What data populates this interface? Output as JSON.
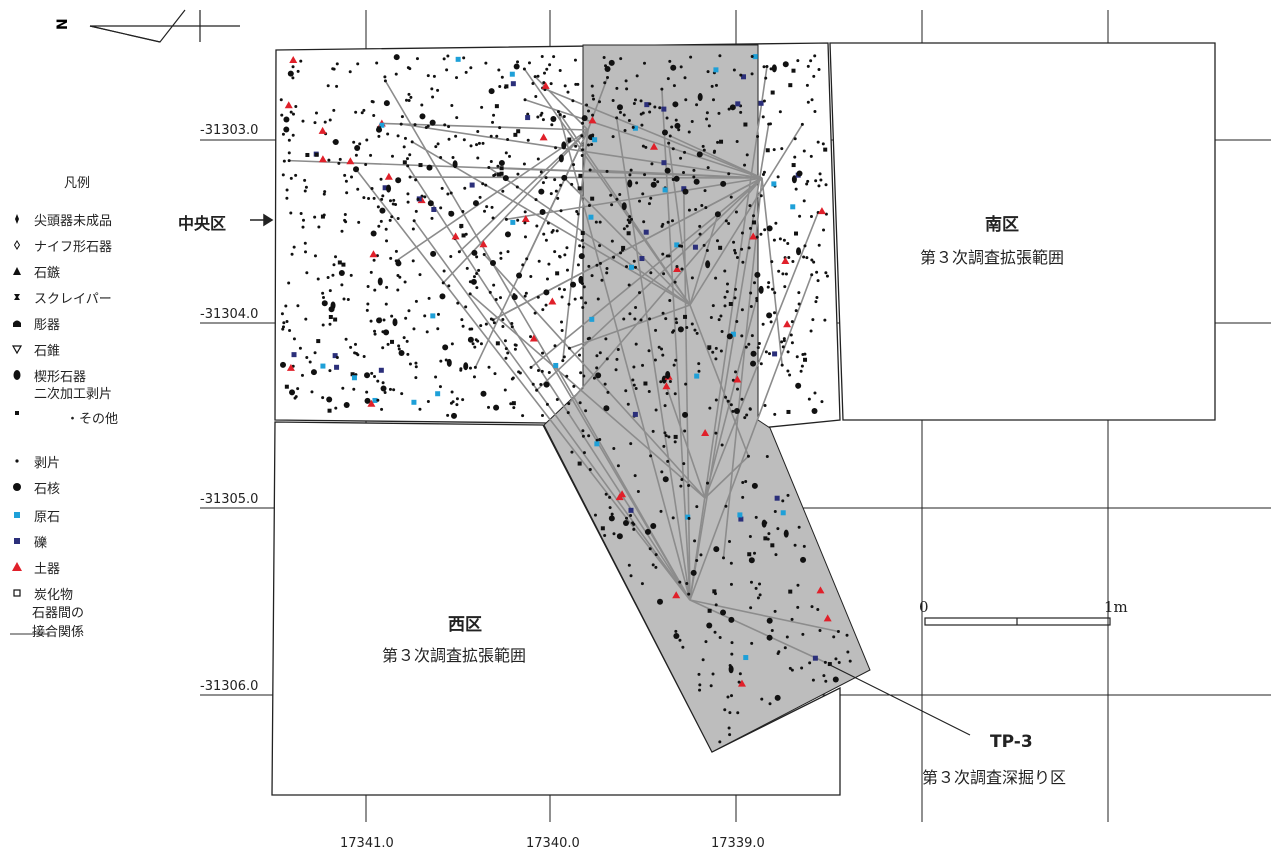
{
  "north_mark": "N",
  "legend": {
    "title": "凡例",
    "items": [
      {
        "symbol": "point-tool-icon",
        "label": "尖頭器未成品"
      },
      {
        "symbol": "knife-tool-icon",
        "label": "ナイフ形石器"
      },
      {
        "symbol": "arrowhead-icon",
        "label": "石鏃"
      },
      {
        "symbol": "scraper-icon",
        "label": "スクレイパー"
      },
      {
        "symbol": "burin-icon",
        "label": "彫器"
      },
      {
        "symbol": "drill-icon",
        "label": "石錐"
      },
      {
        "symbol": "wedge-tool-icon",
        "label": "楔形石器"
      },
      {
        "symbol": "retouched-flake-icon",
        "label": "二次加工剥片",
        "label2": "・その他"
      },
      {
        "symbol": "flake-icon",
        "label": "剥片"
      },
      {
        "symbol": "core-icon",
        "label": "石核"
      },
      {
        "symbol": "raw-stone-icon",
        "label": "原石",
        "color": "#1ea0d8"
      },
      {
        "symbol": "pebble-icon",
        "label": "礫",
        "color": "#2b2f7a"
      },
      {
        "symbol": "pottery-icon",
        "label": "土器",
        "color": "#e0202a"
      },
      {
        "symbol": "charcoal-icon",
        "label": "炭化物"
      },
      {
        "symbol": "refit-line-icon",
        "label": "石器間の",
        "label2": "接合関係",
        "color": "#8c8c8c"
      }
    ]
  },
  "axes": {
    "y_labels": [
      "-31303.0",
      "-31304.0",
      "-31305.0",
      "-31306.0"
    ],
    "x_labels": [
      "17341.0",
      "17340.0",
      "17339.0"
    ]
  },
  "zones": {
    "central": "中央区",
    "south_title": "南区",
    "south_sub": "第３次調査拡張範囲",
    "west_title": "西区",
    "west_sub": "第３次調査拡張範囲",
    "tp_title": "TP-3",
    "tp_sub": "第３次調査深掘り区"
  },
  "scale": {
    "start": "0",
    "end": "1m"
  },
  "colors": {
    "shade": "#bdbdbd",
    "grid": "#222222",
    "refit": "#8c8c8c",
    "raw_stone": "#1ea0d8",
    "pebble": "#2b2f7a",
    "pottery": "#e0202a",
    "dots": "#111111"
  }
}
